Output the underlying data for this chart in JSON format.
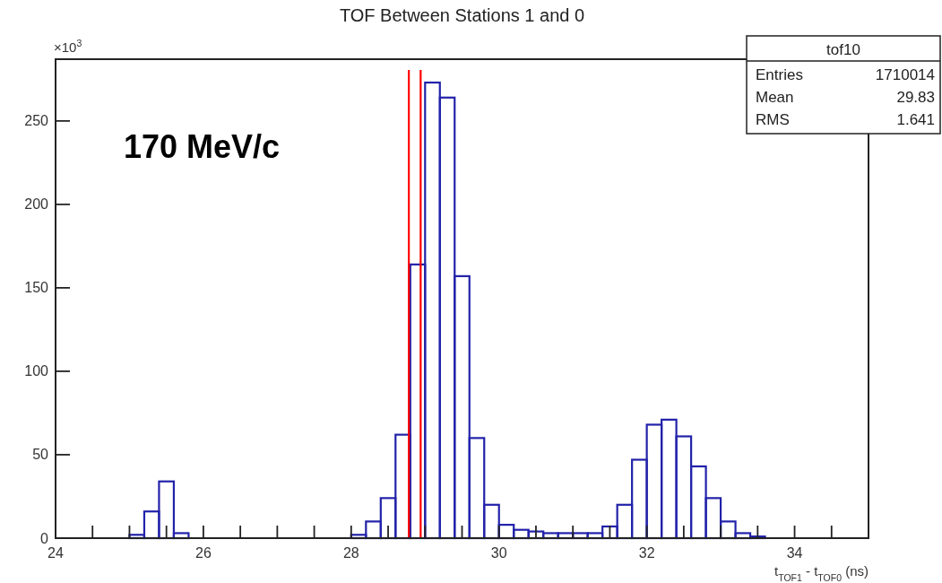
{
  "chart_data": {
    "type": "histogram",
    "title": "TOF Between Stations 1 and 0",
    "xlabel": "t$_{TOF1}$ - t$_{TOF0}$ (ns)",
    "ylabel": "×10$^{3}$",
    "bins": [
      25.0,
      25.2,
      25.4,
      25.6,
      25.8,
      26.0,
      26.2,
      26.4,
      26.6,
      26.8,
      27.0,
      27.2,
      27.4,
      27.6,
      27.8,
      28.0,
      28.2,
      28.4,
      28.6,
      28.8,
      29.0,
      29.2,
      29.4,
      29.6,
      29.8,
      30.0,
      30.2,
      30.4,
      30.6,
      30.8,
      31.0,
      31.2,
      31.4,
      31.6,
      31.8,
      32.0,
      32.2,
      32.4,
      32.6,
      32.8,
      33.0,
      33.2,
      33.4,
      33.6
    ],
    "values": [
      2,
      16,
      34,
      3,
      0,
      0,
      0,
      0,
      0,
      0,
      0,
      0,
      0,
      0,
      0,
      2,
      10,
      24,
      62,
      164,
      273,
      264,
      157,
      60,
      20,
      8,
      5,
      4,
      3,
      3,
      3,
      3,
      7,
      20,
      47,
      68,
      71,
      61,
      43,
      24,
      10,
      3,
      1
    ],
    "color": "#2222aa",
    "xlim": [
      24,
      35
    ],
    "ylim": [
      0,
      287
    ],
    "xticks": [
      24,
      {
        "value": 24.5,
        "label": null
      },
      {
        "value": 25,
        "label": null
      },
      {
        "value": 25.5,
        "label": null
      },
      26,
      {
        "value": 26.5,
        "label": null
      },
      {
        "value": 27,
        "label": null
      },
      {
        "value": 27.5,
        "label": null
      },
      28,
      {
        "value": 28.5,
        "label": null
      },
      {
        "value": 29,
        "label": null
      },
      {
        "value": 29.5,
        "label": null
      },
      30,
      {
        "value": 30.5,
        "label": null
      },
      {
        "value": 31,
        "label": null
      },
      {
        "value": 31.5,
        "label": null
      },
      32,
      {
        "value": 32.5,
        "label": null
      },
      {
        "value": 33,
        "label": null
      },
      {
        "value": 33.5,
        "label": null
      },
      34,
      {
        "value": 34.5,
        "label": null
      }
    ],
    "yticks": [
      0,
      50,
      100,
      150,
      200,
      250
    ],
    "ref_lines": [
      {
        "axis": "x",
        "value": 28.78,
        "color": "#ff0000"
      },
      {
        "axis": "x",
        "value": 28.94,
        "color": "#ff0000"
      }
    ],
    "annotations": [
      "170 MeV/c",
      "tof10",
      "Entries",
      "1710014",
      "Mean",
      "29.83",
      "RMS",
      "1.641"
    ],
    "grid": false
  }
}
